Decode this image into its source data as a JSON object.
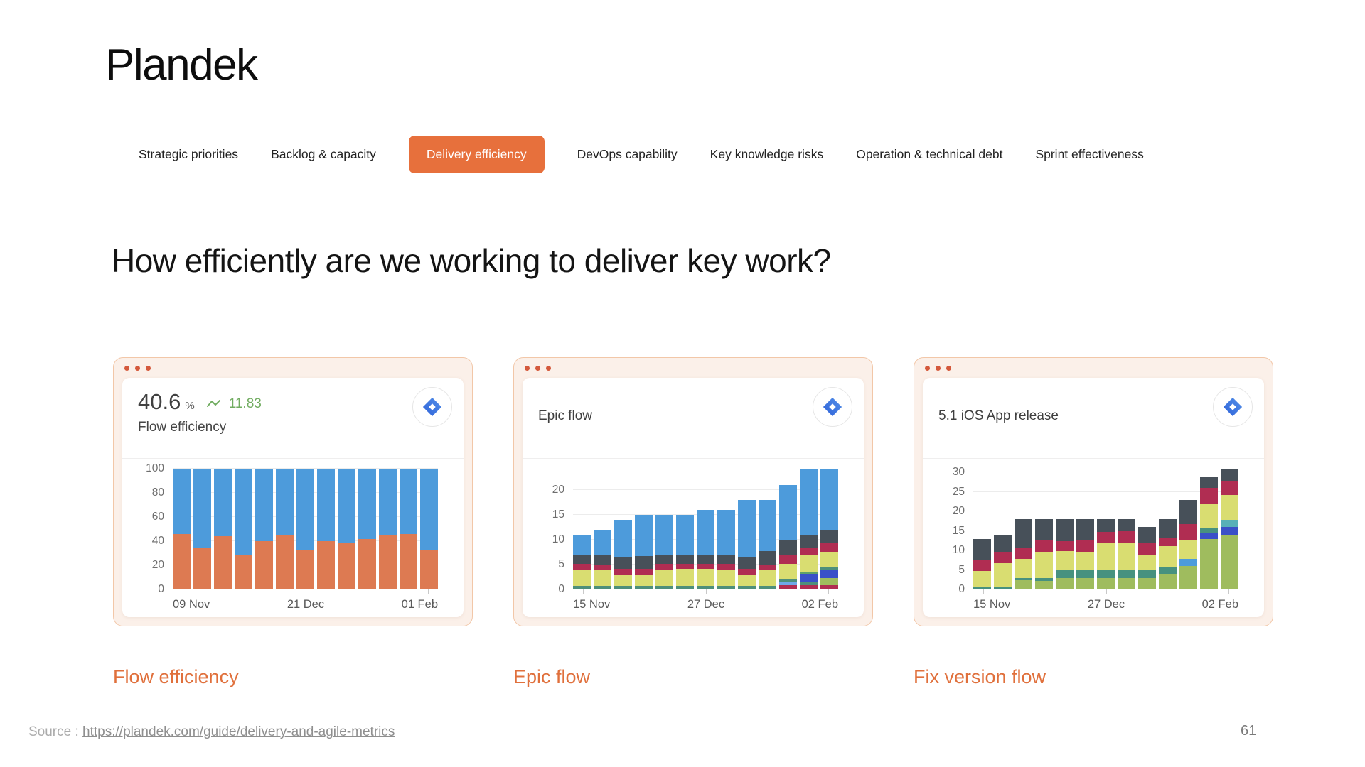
{
  "page": {
    "logo": "Plandek",
    "heading": "How efficiently are we working to deliver key work?",
    "source_label": "Source :",
    "source_link": "https://plandek.com/guide/delivery-and-agile-metrics",
    "page_number": "61"
  },
  "theme": {
    "accent": "#E7703C",
    "accent_text": "#E0703C",
    "trend_green": "#71AC61",
    "card_bg": "#FBF0E9",
    "card_border": "#F2C7A8",
    "dot": "#D4593C"
  },
  "tabs": {
    "active_index": 2,
    "items": [
      "Strategic priorities",
      "Backlog & capacity",
      "Delivery efficiency",
      "DevOps capability",
      "Key knowledge risks",
      "Operation & technical debt",
      "Sprint effectiveness"
    ]
  },
  "cards": [
    {
      "stat_value": "40.6",
      "stat_unit": "%",
      "trend_value": "11.83",
      "title": "Flow efficiency",
      "icon": "jira-icon",
      "footer_label": "Flow efficiency"
    },
    {
      "title": "Epic flow",
      "icon": "jira-icon",
      "footer_label": "Epic flow"
    },
    {
      "title": "5.1 iOS App release",
      "icon": "jira-icon",
      "footer_label": "Fix version flow"
    }
  ],
  "chart_data": [
    {
      "type": "bar",
      "stacked": true,
      "title": "Flow efficiency",
      "ylim": [
        0,
        100
      ],
      "y_ticks": [
        0,
        20,
        40,
        60,
        80,
        100
      ],
      "x_tick_labels": [
        "09 Nov",
        "21 Dec",
        "01 Feb"
      ],
      "legend": false,
      "palette": {
        "orange": "#DD7A52",
        "blue": "#4D9BDB"
      },
      "bars": [
        [
          [
            "orange",
            46
          ],
          [
            "blue",
            54
          ]
        ],
        [
          [
            "orange",
            34
          ],
          [
            "blue",
            66
          ]
        ],
        [
          [
            "orange",
            44
          ],
          [
            "blue",
            56
          ]
        ],
        [
          [
            "orange",
            28
          ],
          [
            "blue",
            72
          ]
        ],
        [
          [
            "orange",
            40
          ],
          [
            "blue",
            60
          ]
        ],
        [
          [
            "orange",
            45
          ],
          [
            "blue",
            55
          ]
        ],
        [
          [
            "orange",
            33
          ],
          [
            "blue",
            67
          ]
        ],
        [
          [
            "orange",
            40
          ],
          [
            "blue",
            60
          ]
        ],
        [
          [
            "orange",
            39
          ],
          [
            "blue",
            61
          ]
        ],
        [
          [
            "orange",
            42
          ],
          [
            "blue",
            58
          ]
        ],
        [
          [
            "orange",
            45
          ],
          [
            "blue",
            55
          ]
        ],
        [
          [
            "orange",
            46
          ],
          [
            "blue",
            54
          ]
        ],
        [
          [
            "orange",
            33
          ],
          [
            "blue",
            67
          ]
        ]
      ]
    },
    {
      "type": "bar",
      "stacked": true,
      "title": "Epic flow",
      "ylim": [
        0,
        24.2
      ],
      "y_ticks": [
        0,
        5,
        10,
        15,
        20
      ],
      "x_tick_labels": [
        "15 Nov",
        "27 Dec",
        "02 Feb"
      ],
      "legend": false,
      "palette": {
        "teal": "#4E8F7B",
        "yellow": "#D9DD71",
        "crimson": "#B02D52",
        "slate": "#475059",
        "blue": "#4D9BDB",
        "royal": "#3A50C8",
        "lightblue": "#6FA8E8",
        "olive": "#9FBC5E",
        "green": "#5FA06A"
      },
      "bars": [
        [
          [
            "teal",
            0.7
          ],
          [
            "yellow",
            3.2
          ],
          [
            "crimson",
            1.2
          ],
          [
            "slate",
            1.9
          ],
          [
            "blue",
            4.0
          ]
        ],
        [
          [
            "teal",
            0.7
          ],
          [
            "yellow",
            3.2
          ],
          [
            "crimson",
            1.1
          ],
          [
            "slate",
            1.9
          ],
          [
            "blue",
            5.1
          ]
        ],
        [
          [
            "teal",
            0.7
          ],
          [
            "yellow",
            2.2
          ],
          [
            "crimson",
            1.3
          ],
          [
            "slate",
            2.3
          ],
          [
            "blue",
            7.5
          ]
        ],
        [
          [
            "teal",
            0.7
          ],
          [
            "yellow",
            2.1
          ],
          [
            "crimson",
            1.4
          ],
          [
            "slate",
            2.5
          ],
          [
            "blue",
            8.3
          ]
        ],
        [
          [
            "teal",
            0.7
          ],
          [
            "yellow",
            3.3
          ],
          [
            "crimson",
            1.1
          ],
          [
            "slate",
            1.7
          ],
          [
            "blue",
            8.2
          ]
        ],
        [
          [
            "teal",
            0.7
          ],
          [
            "yellow",
            3.4
          ],
          [
            "crimson",
            1.0
          ],
          [
            "slate",
            1.7
          ],
          [
            "blue",
            8.2
          ]
        ],
        [
          [
            "teal",
            0.7
          ],
          [
            "yellow",
            3.4
          ],
          [
            "crimson",
            1.1
          ],
          [
            "slate",
            1.6
          ],
          [
            "blue",
            9.2
          ]
        ],
        [
          [
            "teal",
            0.7
          ],
          [
            "yellow",
            3.3
          ],
          [
            "crimson",
            1.1
          ],
          [
            "slate",
            1.8
          ],
          [
            "blue",
            9.1
          ]
        ],
        [
          [
            "teal",
            0.7
          ],
          [
            "yellow",
            2.2
          ],
          [
            "crimson",
            1.2
          ],
          [
            "slate",
            2.3
          ],
          [
            "blue",
            11.6
          ]
        ],
        [
          [
            "teal",
            0.7
          ],
          [
            "yellow",
            3.3
          ],
          [
            "crimson",
            1.0
          ],
          [
            "slate",
            2.7
          ],
          [
            "blue",
            10.3
          ]
        ],
        [
          [
            "crimson",
            0.8
          ],
          [
            "lightblue",
            0.8
          ],
          [
            "teal",
            0.6
          ],
          [
            "yellow",
            3.0
          ],
          [
            "crimson",
            1.6
          ],
          [
            "slate",
            3.0
          ],
          [
            "blue",
            11.2
          ]
        ],
        [
          [
            "crimson",
            0.8
          ],
          [
            "teal",
            0.7
          ],
          [
            "royal",
            1.6
          ],
          [
            "green",
            0.5
          ],
          [
            "yellow",
            3.3
          ],
          [
            "crimson",
            1.5
          ],
          [
            "slate",
            2.6
          ],
          [
            "blue",
            13.0
          ]
        ],
        [
          [
            "crimson",
            0.8
          ],
          [
            "olive",
            1.5
          ],
          [
            "royal",
            1.7
          ],
          [
            "teal",
            0.6
          ],
          [
            "yellow",
            3.0
          ],
          [
            "crimson",
            1.6
          ],
          [
            "slate",
            2.8
          ],
          [
            "blue",
            12.0
          ]
        ]
      ]
    },
    {
      "type": "bar",
      "stacked": true,
      "title": "5.1 iOS App release",
      "ylim": [
        0,
        31
      ],
      "y_ticks": [
        0,
        5,
        10,
        15,
        20,
        25,
        30
      ],
      "x_tick_labels": [
        "15 Nov",
        "27 Dec",
        "02 Feb"
      ],
      "legend": false,
      "palette": {
        "olive": "#9FBC5E",
        "teal": "#47917F",
        "yellow": "#D9DD71",
        "crimson": "#B02D52",
        "slate": "#475059",
        "blue": "#4D9BDB",
        "royal": "#3A50C8",
        "lightteal": "#58B0B8"
      },
      "bars": [
        [
          [
            "teal",
            0.8
          ],
          [
            "yellow",
            4.0
          ],
          [
            "crimson",
            2.7
          ],
          [
            "slate",
            5.5
          ]
        ],
        [
          [
            "teal",
            0.8
          ],
          [
            "yellow",
            6.0
          ],
          [
            "crimson",
            2.9
          ],
          [
            "slate",
            4.3
          ]
        ],
        [
          [
            "olive",
            2.4
          ],
          [
            "teal",
            0.6
          ],
          [
            "yellow",
            4.8
          ],
          [
            "crimson",
            3.0
          ],
          [
            "slate",
            7.2
          ]
        ],
        [
          [
            "olive",
            2.2
          ],
          [
            "teal",
            0.8
          ],
          [
            "yellow",
            6.6
          ],
          [
            "crimson",
            3.1
          ],
          [
            "slate",
            5.3
          ]
        ],
        [
          [
            "olive",
            2.9
          ],
          [
            "teal",
            2.0
          ],
          [
            "yellow",
            4.9
          ],
          [
            "crimson",
            2.7
          ],
          [
            "slate",
            5.5
          ]
        ],
        [
          [
            "olive",
            3.0
          ],
          [
            "teal",
            1.9
          ],
          [
            "yellow",
            4.8
          ],
          [
            "crimson",
            3.1
          ],
          [
            "slate",
            5.2
          ]
        ],
        [
          [
            "olive",
            3.0
          ],
          [
            "teal",
            1.9
          ],
          [
            "yellow",
            6.9
          ],
          [
            "crimson",
            3.0
          ],
          [
            "slate",
            3.2
          ]
        ],
        [
          [
            "olive",
            3.0
          ],
          [
            "teal",
            1.9
          ],
          [
            "yellow",
            6.9
          ],
          [
            "crimson",
            3.2
          ],
          [
            "slate",
            3.0
          ]
        ],
        [
          [
            "olive",
            3.0
          ],
          [
            "teal",
            1.9
          ],
          [
            "yellow",
            4.0
          ],
          [
            "crimson",
            3.0
          ],
          [
            "slate",
            4.1
          ]
        ],
        [
          [
            "olive",
            4.0
          ],
          [
            "teal",
            1.9
          ],
          [
            "yellow",
            5.2
          ],
          [
            "crimson",
            2.0
          ],
          [
            "slate",
            4.9
          ]
        ],
        [
          [
            "olive",
            6.0
          ],
          [
            "blue",
            1.8
          ],
          [
            "yellow",
            4.9
          ],
          [
            "crimson",
            4.0
          ],
          [
            "slate",
            6.3
          ]
        ],
        [
          [
            "olive",
            13.0
          ],
          [
            "royal",
            1.5
          ],
          [
            "teal",
            1.3
          ],
          [
            "yellow",
            6.0
          ],
          [
            "crimson",
            4.2
          ],
          [
            "slate",
            3.0
          ]
        ],
        [
          [
            "olive",
            14.0
          ],
          [
            "royal",
            2.0
          ],
          [
            "lightteal",
            1.8
          ],
          [
            "yellow",
            6.4
          ],
          [
            "crimson",
            3.8
          ],
          [
            "slate",
            3.0
          ]
        ]
      ]
    }
  ]
}
